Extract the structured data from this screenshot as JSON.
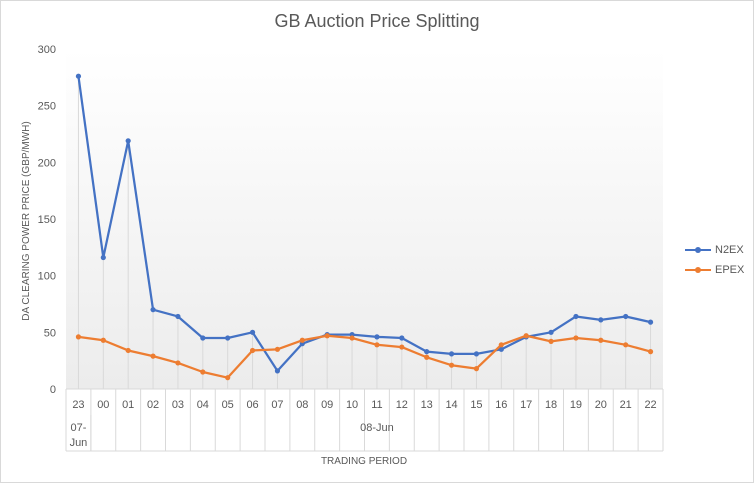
{
  "chart_data": {
    "type": "line",
    "title": "GB Auction Price Splitting",
    "xlabel": "TRADING PERIOD",
    "ylabel": "DA CLEARING POWER PRICE (GBP/MWH)",
    "ylim": [
      0,
      300
    ],
    "yticks": [
      0,
      50,
      100,
      150,
      200,
      250,
      300
    ],
    "categories": [
      "23",
      "00",
      "01",
      "02",
      "03",
      "04",
      "05",
      "06",
      "07",
      "08",
      "09",
      "10",
      "11",
      "12",
      "13",
      "14",
      "15",
      "16",
      "17",
      "18",
      "19",
      "20",
      "21",
      "22"
    ],
    "category_groups": [
      {
        "label": "07-\nJun",
        "label_lines": [
          "07-",
          "Jun"
        ],
        "span": 1
      },
      {
        "label": "08-Jun",
        "label_lines": [
          "08-Jun"
        ],
        "span": 23
      }
    ],
    "grid": false,
    "legend_position": "right",
    "series": [
      {
        "name": "N2EX",
        "color": "#4472c4",
        "values": [
          276,
          116,
          219,
          70,
          64,
          45,
          45,
          50,
          16,
          40,
          48,
          48,
          46,
          45,
          33,
          31,
          31,
          35,
          46,
          50,
          64,
          61,
          64,
          59
        ]
      },
      {
        "name": "EPEX",
        "color": "#ed7d31",
        "values": [
          46,
          43,
          34,
          29,
          23,
          15,
          10,
          34,
          35,
          43,
          47,
          45,
          39,
          37,
          28,
          21,
          18,
          39,
          47,
          42,
          45,
          43,
          39,
          33
        ]
      }
    ]
  }
}
